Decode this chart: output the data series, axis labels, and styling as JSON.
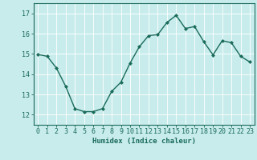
{
  "x": [
    0,
    1,
    2,
    3,
    4,
    5,
    6,
    7,
    8,
    9,
    10,
    11,
    12,
    13,
    14,
    15,
    16,
    17,
    18,
    19,
    20,
    21,
    22,
    23
  ],
  "y": [
    14.97,
    14.88,
    14.3,
    13.4,
    12.3,
    12.15,
    12.15,
    12.3,
    13.15,
    13.6,
    14.55,
    15.35,
    15.9,
    15.95,
    16.55,
    16.9,
    16.25,
    16.35,
    15.6,
    14.95,
    15.65,
    15.55,
    14.88,
    14.6
  ],
  "line_color": "#1a6b5a",
  "marker": "D",
  "markersize": 2.0,
  "linewidth": 1.0,
  "bg_color": "#c8ecec",
  "grid_color": "#ffffff",
  "xlabel": "Humidex (Indice chaleur)",
  "xlim": [
    -0.5,
    23.5
  ],
  "ylim": [
    11.5,
    17.5
  ],
  "yticks": [
    12,
    13,
    14,
    15,
    16,
    17
  ],
  "xticks": [
    0,
    1,
    2,
    3,
    4,
    5,
    6,
    7,
    8,
    9,
    10,
    11,
    12,
    13,
    14,
    15,
    16,
    17,
    18,
    19,
    20,
    21,
    22,
    23
  ],
  "xtick_labels": [
    "0",
    "1",
    "2",
    "3",
    "4",
    "5",
    "6",
    "7",
    "8",
    "9",
    "10",
    "11",
    "12",
    "13",
    "14",
    "15",
    "16",
    "17",
    "18",
    "19",
    "20",
    "21",
    "22",
    "23"
  ],
  "tick_color": "#1a6b5a",
  "label_fontsize": 6.5,
  "tick_fontsize": 6.0,
  "grid_linewidth": 0.6,
  "spine_linewidth": 0.8
}
